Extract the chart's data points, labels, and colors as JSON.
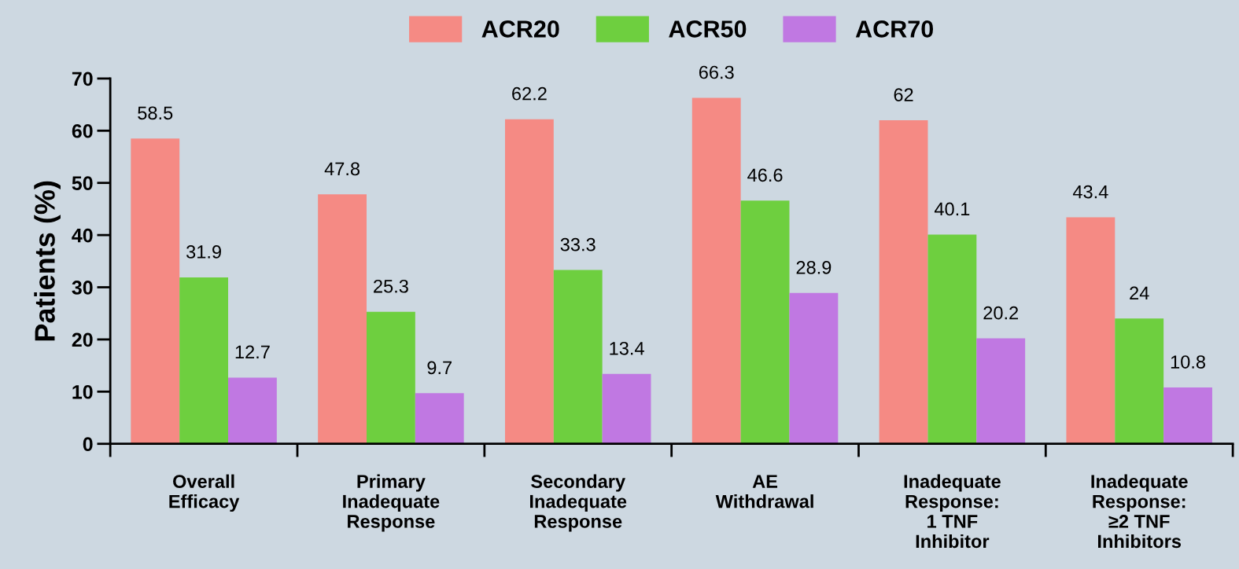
{
  "chart_data": {
    "type": "bar",
    "ylabel": "Patients (%)",
    "categories": [
      "Overall\nEfficacy",
      "Primary\nInadequate\nResponse",
      "Secondary\nInadequate\nResponse",
      "AE\nWithdrawal",
      "Inadequate\nResponse:\n1 TNF\nInhibitor",
      "Inadequate\nResponse:\n≥2 TNF\nInhibitors"
    ],
    "series": [
      {
        "name": "ACR20",
        "color": "#f58a84",
        "values": [
          58.5,
          47.8,
          62.2,
          66.3,
          62,
          43.4
        ]
      },
      {
        "name": "ACR50",
        "color": "#6ecf3f",
        "values": [
          31.9,
          25.3,
          33.3,
          46.6,
          40.1,
          24
        ]
      },
      {
        "name": "ACR70",
        "color": "#c078e2",
        "values": [
          12.7,
          9.7,
          13.4,
          28.9,
          20.2,
          10.8
        ]
      }
    ],
    "ylim": [
      0,
      70
    ],
    "yticks": [
      0,
      10,
      20,
      30,
      40,
      50,
      60,
      70
    ],
    "grid": false,
    "legend": "top",
    "data_labels": true
  }
}
